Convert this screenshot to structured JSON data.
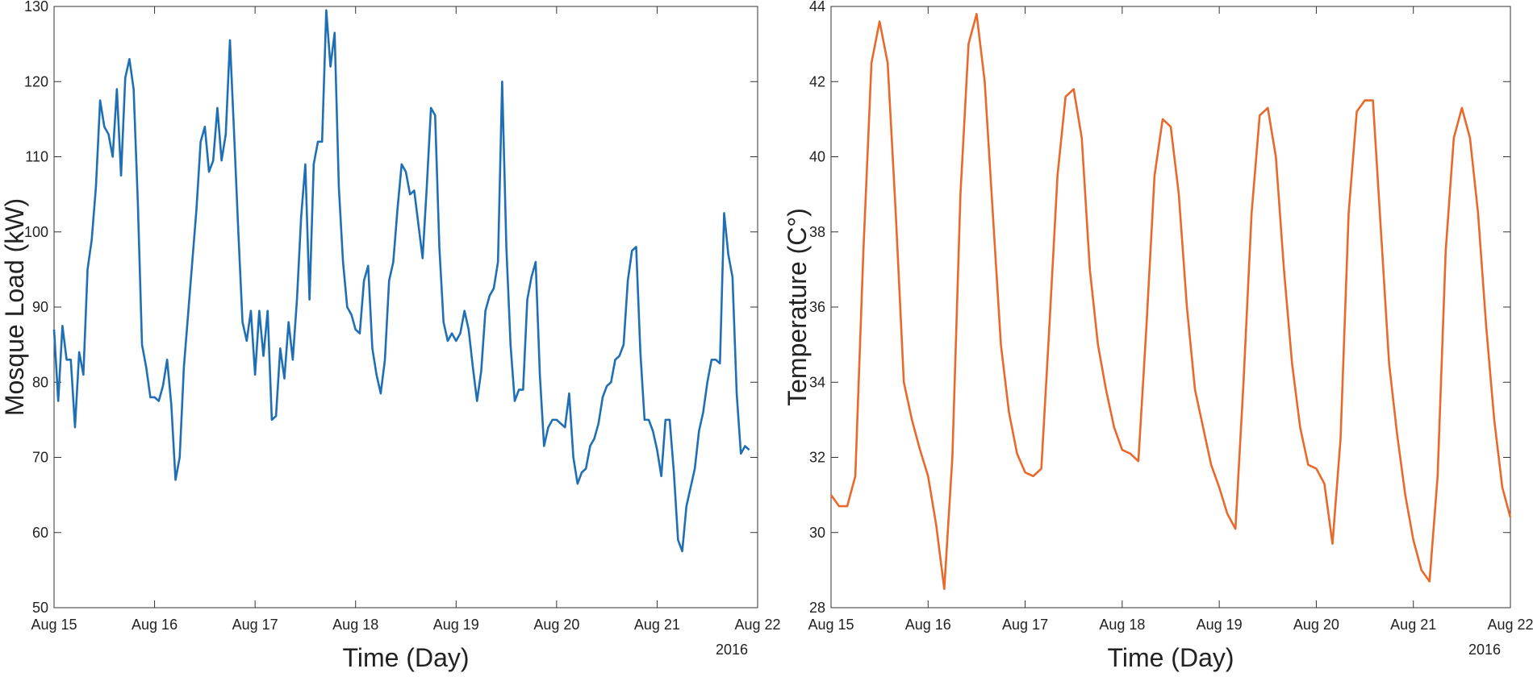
{
  "chart_data": [
    {
      "type": "line",
      "xlabel": "Time (Day)",
      "ylabel": "Mosque Load (kW)",
      "x_secondary_label": "2016",
      "color": "#1f6fb4",
      "xlim": [
        0,
        168
      ],
      "xticks": [
        {
          "value": 0,
          "label": "Aug 15"
        },
        {
          "value": 24,
          "label": "Aug 16"
        },
        {
          "value": 48,
          "label": "Aug 17"
        },
        {
          "value": 72,
          "label": "Aug 18"
        },
        {
          "value": 96,
          "label": "Aug 19"
        },
        {
          "value": 120,
          "label": "Aug 20"
        },
        {
          "value": 144,
          "label": "Aug 21"
        },
        {
          "value": 168,
          "label": "Aug 22"
        }
      ],
      "ylim": [
        50,
        130
      ],
      "yticks": [
        50,
        60,
        70,
        80,
        90,
        100,
        110,
        120,
        130
      ],
      "x": [
        0,
        1,
        2,
        3,
        4,
        5,
        6,
        7,
        8,
        9,
        10,
        11,
        12,
        13,
        14,
        15,
        16,
        17,
        18,
        19,
        20,
        21,
        22,
        23,
        24,
        25,
        26,
        27,
        28,
        29,
        30,
        31,
        32,
        33,
        34,
        35,
        36,
        37,
        38,
        39,
        40,
        41,
        42,
        43,
        44,
        45,
        46,
        47,
        48,
        49,
        50,
        51,
        52,
        53,
        54,
        55,
        56,
        57,
        58,
        59,
        60,
        61,
        62,
        63,
        64,
        65,
        66,
        67,
        68,
        69,
        70,
        71,
        72,
        73,
        74,
        75,
        76,
        77,
        78,
        79,
        80,
        81,
        82,
        83,
        84,
        85,
        86,
        87,
        88,
        89,
        90,
        91,
        92,
        93,
        94,
        95,
        96,
        97,
        98,
        99,
        100,
        101,
        102,
        103,
        104,
        105,
        106,
        107,
        108,
        109,
        110,
        111,
        112,
        113,
        114,
        115,
        116,
        117,
        118,
        119,
        120,
        121,
        122,
        123,
        124,
        125,
        126,
        127,
        128,
        129,
        130,
        131,
        132,
        133,
        134,
        135,
        136,
        137,
        138,
        139,
        140,
        141,
        142,
        143,
        144,
        145,
        146,
        147,
        148,
        149,
        150,
        151,
        152,
        153,
        154,
        155,
        156,
        157,
        158,
        159,
        160,
        161,
        162,
        163,
        164,
        165,
        166
      ],
      "values": [
        87,
        77.5,
        87.5,
        83,
        83,
        74,
        84,
        81,
        95,
        99,
        106,
        117.5,
        114,
        113,
        110,
        119,
        107.5,
        120.5,
        123,
        119,
        104,
        85,
        82,
        78,
        78,
        77.5,
        79.5,
        83,
        77,
        67,
        70,
        82,
        89,
        96,
        103,
        112,
        114,
        108,
        109.5,
        116.5,
        109.5,
        113,
        125.5,
        113,
        100,
        88,
        85.5,
        89.5,
        81,
        89.5,
        83.5,
        89.5,
        75,
        75.5,
        84.5,
        80.5,
        88,
        83,
        91,
        102,
        109,
        91,
        109,
        112,
        112,
        129.5,
        122,
        126.5,
        106,
        96,
        90,
        89,
        87,
        86.5,
        93.5,
        95.5,
        84.5,
        81,
        78.5,
        83,
        93.5,
        96,
        103,
        109,
        108,
        105,
        105.5,
        101,
        96.5,
        106,
        116.5,
        115.5,
        98,
        88,
        85.5,
        86.5,
        85.5,
        86.5,
        89.5,
        87,
        82,
        77.5,
        81.5,
        89.5,
        91.5,
        92.5,
        96,
        120,
        98,
        85,
        77.5,
        79,
        79,
        91,
        94,
        96,
        81,
        71.5,
        74,
        75,
        75,
        74.5,
        74,
        78.5,
        70,
        66.5,
        68,
        68.5,
        71.5,
        72.5,
        74.5,
        78,
        79.5,
        80,
        83,
        83.5,
        85,
        93.5,
        97.5,
        98,
        84,
        75,
        75,
        73.5,
        71,
        67.5,
        75,
        75,
        68,
        59,
        57.5,
        63.5,
        66,
        68.5,
        73.5,
        76,
        80,
        83,
        83,
        82.5,
        102.5,
        97,
        94,
        78.5,
        70.5,
        71.5,
        71
      ]
    },
    {
      "type": "line",
      "xlabel": "Time (Day)",
      "ylabel": "Temperature (C°)",
      "x_secondary_label": "2016",
      "color": "#e8692a",
      "xlim": [
        0,
        168
      ],
      "xticks": [
        {
          "value": 0,
          "label": "Aug 15"
        },
        {
          "value": 24,
          "label": "Aug 16"
        },
        {
          "value": 48,
          "label": "Aug 17"
        },
        {
          "value": 72,
          "label": "Aug 18"
        },
        {
          "value": 96,
          "label": "Aug 19"
        },
        {
          "value": 120,
          "label": "Aug 20"
        },
        {
          "value": 144,
          "label": "Aug 21"
        },
        {
          "value": 168,
          "label": "Aug 22"
        }
      ],
      "ylim": [
        28,
        44
      ],
      "yticks": [
        28,
        30,
        32,
        34,
        36,
        38,
        40,
        42,
        44
      ],
      "x": [
        0,
        2,
        4,
        6,
        8,
        10,
        12,
        14,
        16,
        18,
        20,
        22,
        24,
        26,
        28,
        30,
        32,
        34,
        36,
        38,
        40,
        42,
        44,
        46,
        48,
        50,
        52,
        54,
        56,
        58,
        60,
        62,
        64,
        66,
        68,
        70,
        72,
        74,
        76,
        78,
        80,
        82,
        84,
        86,
        88,
        90,
        92,
        94,
        96,
        98,
        100,
        102,
        104,
        106,
        108,
        110,
        112,
        114,
        116,
        118,
        120,
        122,
        124,
        126,
        128,
        130,
        132,
        134,
        136,
        138,
        140,
        142,
        144,
        146,
        148,
        150,
        152,
        154,
        156,
        158,
        160,
        162,
        164,
        166,
        168
      ],
      "values": [
        31,
        30.7,
        30.7,
        31.5,
        37.5,
        42.5,
        43.6,
        42.5,
        38.5,
        34,
        33,
        32.2,
        31.5,
        30.2,
        28.5,
        32,
        39,
        43,
        43.8,
        42,
        38.5,
        35,
        33.2,
        32.1,
        31.6,
        31.5,
        31.7,
        35.5,
        39.5,
        41.6,
        41.8,
        40.5,
        37,
        35,
        33.8,
        32.8,
        32.2,
        32.1,
        31.9,
        35.5,
        39.5,
        41,
        40.8,
        39,
        36,
        33.8,
        32.8,
        31.8,
        31.2,
        30.5,
        30.1,
        34,
        38.5,
        41.1,
        41.3,
        40,
        37,
        34.5,
        32.8,
        31.8,
        31.7,
        31.3,
        29.7,
        32.5,
        38.5,
        41.2,
        41.5,
        41.5,
        38,
        34.5,
        32.6,
        31,
        29.8,
        29,
        28.7,
        31.5,
        37.5,
        40.5,
        41.3,
        40.5,
        38.5,
        35.5,
        33,
        31.2,
        30.4
      ]
    }
  ]
}
